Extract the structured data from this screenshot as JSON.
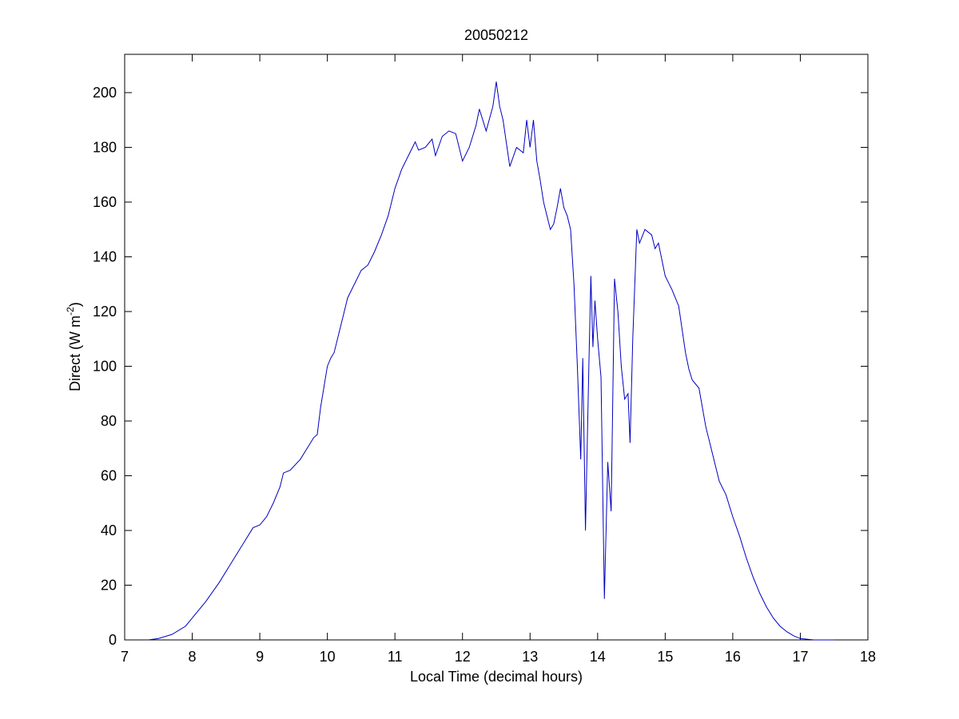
{
  "chart_data": {
    "type": "line",
    "title": "20050212",
    "xlabel": "Local Time (decimal hours)",
    "ylabel": [
      "Direct (W m",
      "-2",
      ")"
    ],
    "xlim": [
      7,
      18
    ],
    "xticks": [
      7,
      8,
      9,
      10,
      11,
      12,
      13,
      14,
      15,
      16,
      17,
      18
    ],
    "ylim": [
      0,
      214
    ],
    "yticks": [
      0,
      20,
      40,
      60,
      80,
      100,
      120,
      140,
      160,
      180,
      200
    ],
    "grid": false,
    "series": [
      {
        "color": "#0000c0",
        "x": [
          7.35,
          7.5,
          7.7,
          7.9,
          8.0,
          8.2,
          8.4,
          8.6,
          8.75,
          8.9,
          9.0,
          9.1,
          9.2,
          9.3,
          9.35,
          9.45,
          9.6,
          9.7,
          9.8,
          9.85,
          9.9,
          10.0,
          10.05,
          10.1,
          10.2,
          10.3,
          10.4,
          10.5,
          10.6,
          10.7,
          10.8,
          10.9,
          11.0,
          11.1,
          11.2,
          11.3,
          11.35,
          11.45,
          11.55,
          11.6,
          11.7,
          11.8,
          11.9,
          12.0,
          12.1,
          12.2,
          12.25,
          12.35,
          12.45,
          12.5,
          12.55,
          12.6,
          12.7,
          12.8,
          12.9,
          12.95,
          13.0,
          13.05,
          13.1,
          13.15,
          13.2,
          13.25,
          13.3,
          13.35,
          13.4,
          13.45,
          13.5,
          13.55,
          13.6,
          13.65,
          13.7,
          13.75,
          13.78,
          13.82,
          13.87,
          13.9,
          13.93,
          13.96,
          14.0,
          14.05,
          14.1,
          14.15,
          14.2,
          14.25,
          14.3,
          14.35,
          14.4,
          14.45,
          14.48,
          14.52,
          14.58,
          14.62,
          14.7,
          14.8,
          14.85,
          14.9,
          15.0,
          15.1,
          15.2,
          15.3,
          15.35,
          15.4,
          15.5,
          15.6,
          15.7,
          15.8,
          15.9,
          16.0,
          16.1,
          16.2,
          16.3,
          16.4,
          16.5,
          16.6,
          16.7,
          16.8,
          16.9,
          17.0,
          17.2,
          17.5
        ],
        "values": [
          0,
          0.5,
          2,
          5,
          8,
          14,
          21,
          29,
          35,
          41,
          42,
          45,
          50,
          56,
          61,
          62,
          66,
          70,
          74,
          75,
          85,
          100,
          103,
          105,
          115,
          125,
          130,
          135,
          137,
          142,
          148,
          155,
          165,
          172,
          177,
          182,
          179,
          180,
          183,
          177,
          184,
          186,
          185,
          175,
          180,
          188,
          194,
          186,
          195,
          204,
          195,
          190,
          173,
          180,
          178,
          190,
          180,
          190,
          175,
          168,
          160,
          155,
          150,
          152,
          158,
          165,
          158,
          155,
          150,
          130,
          100,
          66,
          103,
          40,
          100,
          133,
          107,
          124,
          110,
          96,
          15,
          65,
          47,
          132,
          120,
          100,
          88,
          90,
          72,
          110,
          150,
          145,
          150,
          148,
          143,
          145,
          133,
          128,
          122,
          105,
          99,
          95,
          92,
          78,
          68,
          58,
          53,
          45,
          38,
          30,
          23,
          17,
          12,
          8,
          5,
          3,
          1.5,
          0.5,
          0,
          0
        ]
      }
    ]
  }
}
